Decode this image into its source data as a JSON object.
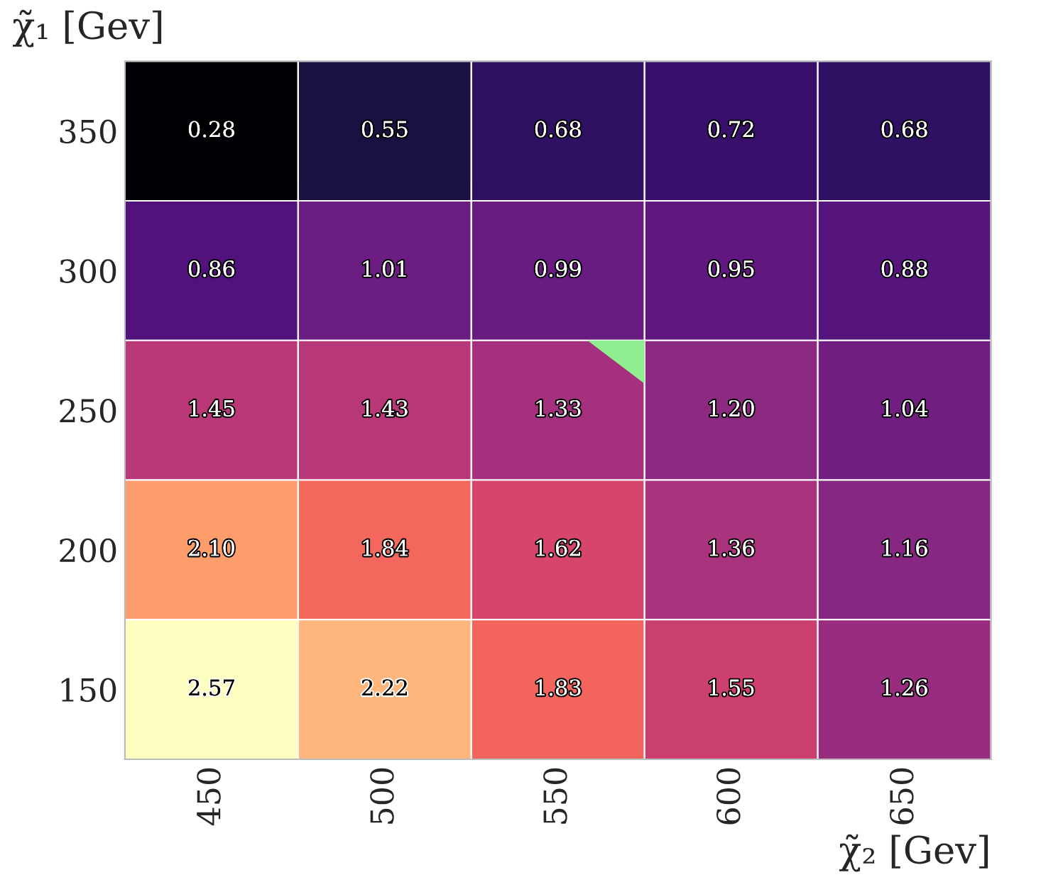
{
  "chart_data": {
    "type": "heatmap",
    "xlabel": "χ̃₂ [Gev]",
    "ylabel": "χ̃₁ [Gev]",
    "categories": [
      "450",
      "500",
      "550",
      "600",
      "650"
    ],
    "y_categories": [
      "350",
      "300",
      "250",
      "200",
      "150"
    ],
    "cells": [
      [
        0.28,
        0.55,
        0.68,
        0.72,
        0.68
      ],
      [
        0.86,
        1.01,
        0.99,
        0.95,
        0.88
      ],
      [
        1.45,
        1.43,
        1.33,
        1.2,
        1.04
      ],
      [
        2.1,
        1.84,
        1.62,
        1.36,
        1.16
      ],
      [
        2.57,
        2.22,
        1.83,
        1.55,
        1.26
      ]
    ],
    "cell_labels": [
      [
        "0.28",
        "0.55",
        "0.68",
        "0.72",
        "0.68"
      ],
      [
        "0.86",
        "1.01",
        "0.99",
        "0.95",
        "0.88"
      ],
      [
        "1.45",
        "1.43",
        "1.33",
        "1.20",
        "1.04"
      ],
      [
        "2.10",
        "1.84",
        "1.62",
        "1.36",
        "1.16"
      ],
      [
        "2.57",
        "2.22",
        "1.83",
        "1.55",
        "1.26"
      ]
    ]
  }
}
